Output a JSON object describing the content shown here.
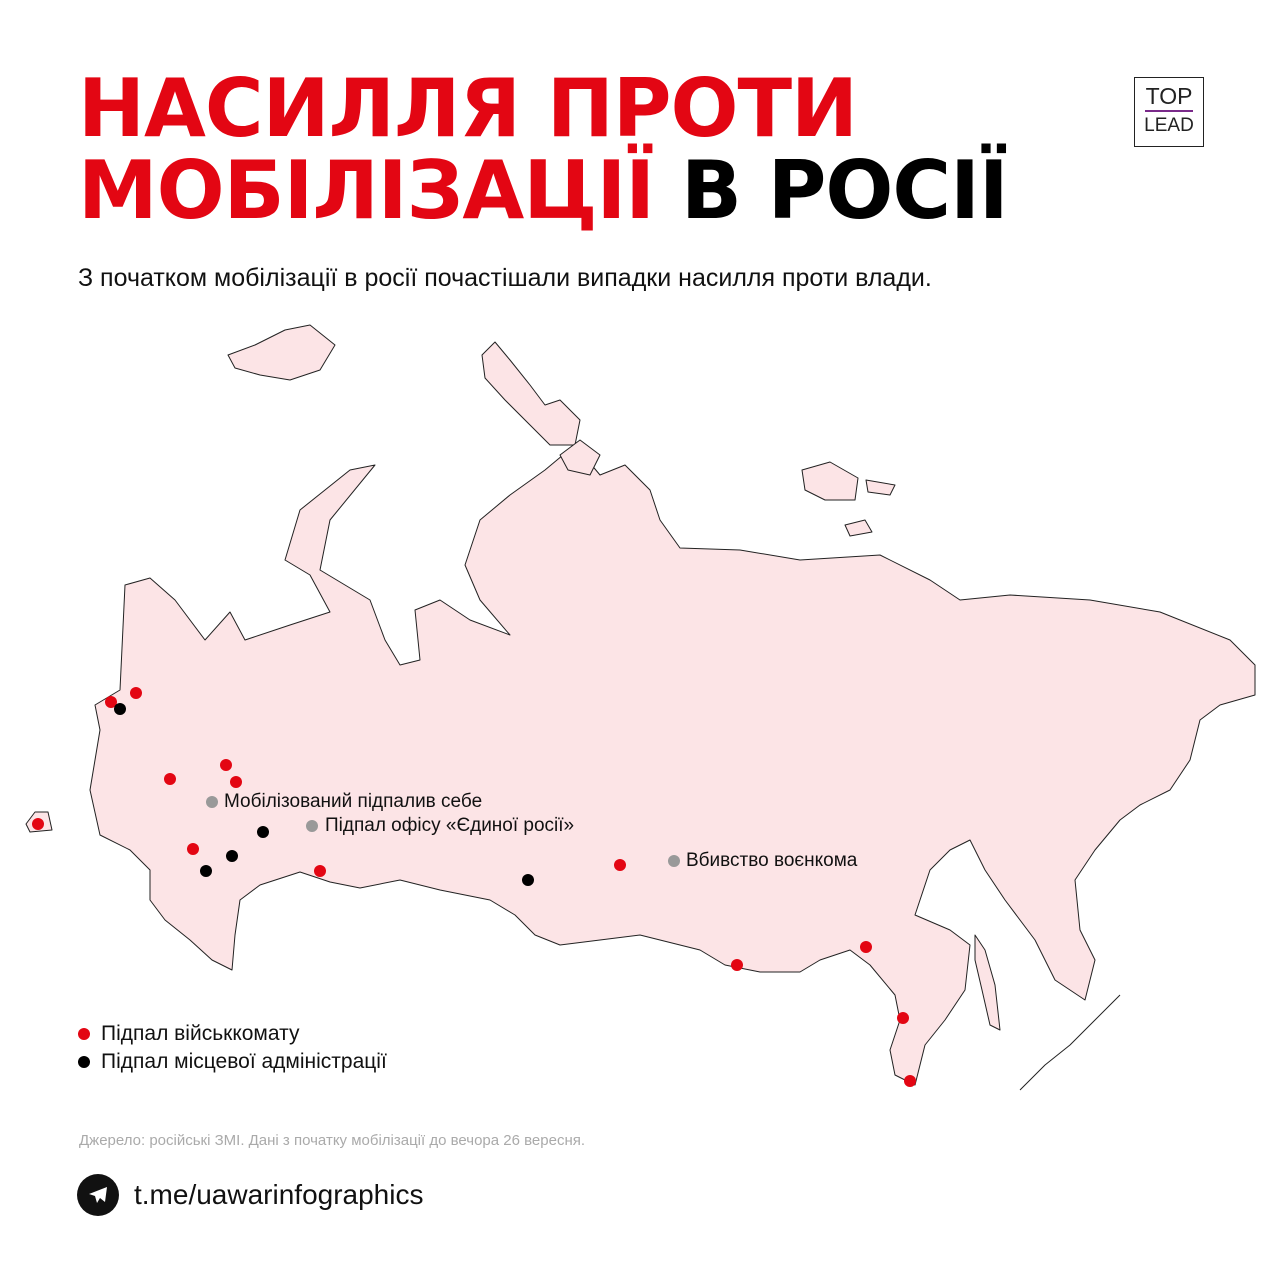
{
  "header": {
    "title_line1": "НАСИЛЛЯ ПРОТИ",
    "title_line2_red": "МОБІЛІЗАЦІЇ",
    "title_line2_black": "В РОСІЇ",
    "subtitle": "З початком мобілізації в росії почастішали випадки насилля проти влади."
  },
  "logo": {
    "line1": "TOP",
    "line2": "LEAD"
  },
  "colors": {
    "accent": "#e30613",
    "map_fill": "#fce4e6",
    "black_marker": "#000000",
    "gray_marker": "#999999",
    "logo_bar": "#7a2a8a"
  },
  "annotations": [
    {
      "label": "Мобілізований підпалив себе",
      "type": "gray"
    },
    {
      "label": "Підпал офісу «Єдиної росії»",
      "type": "gray"
    },
    {
      "label": "Вбивство воєнкома",
      "type": "gray"
    }
  ],
  "legend": [
    {
      "label": "Підпал військкомату",
      "color": "#e30613"
    },
    {
      "label": "Підпал місцевої адміністрації",
      "color": "#000000"
    }
  ],
  "footer": {
    "source": "Джерело: російські ЗМІ. Дані з початку мобілізації до вечора 26 вересня.",
    "link": "t.me/uawarinfographics",
    "link_icon": "telegram-icon"
  }
}
